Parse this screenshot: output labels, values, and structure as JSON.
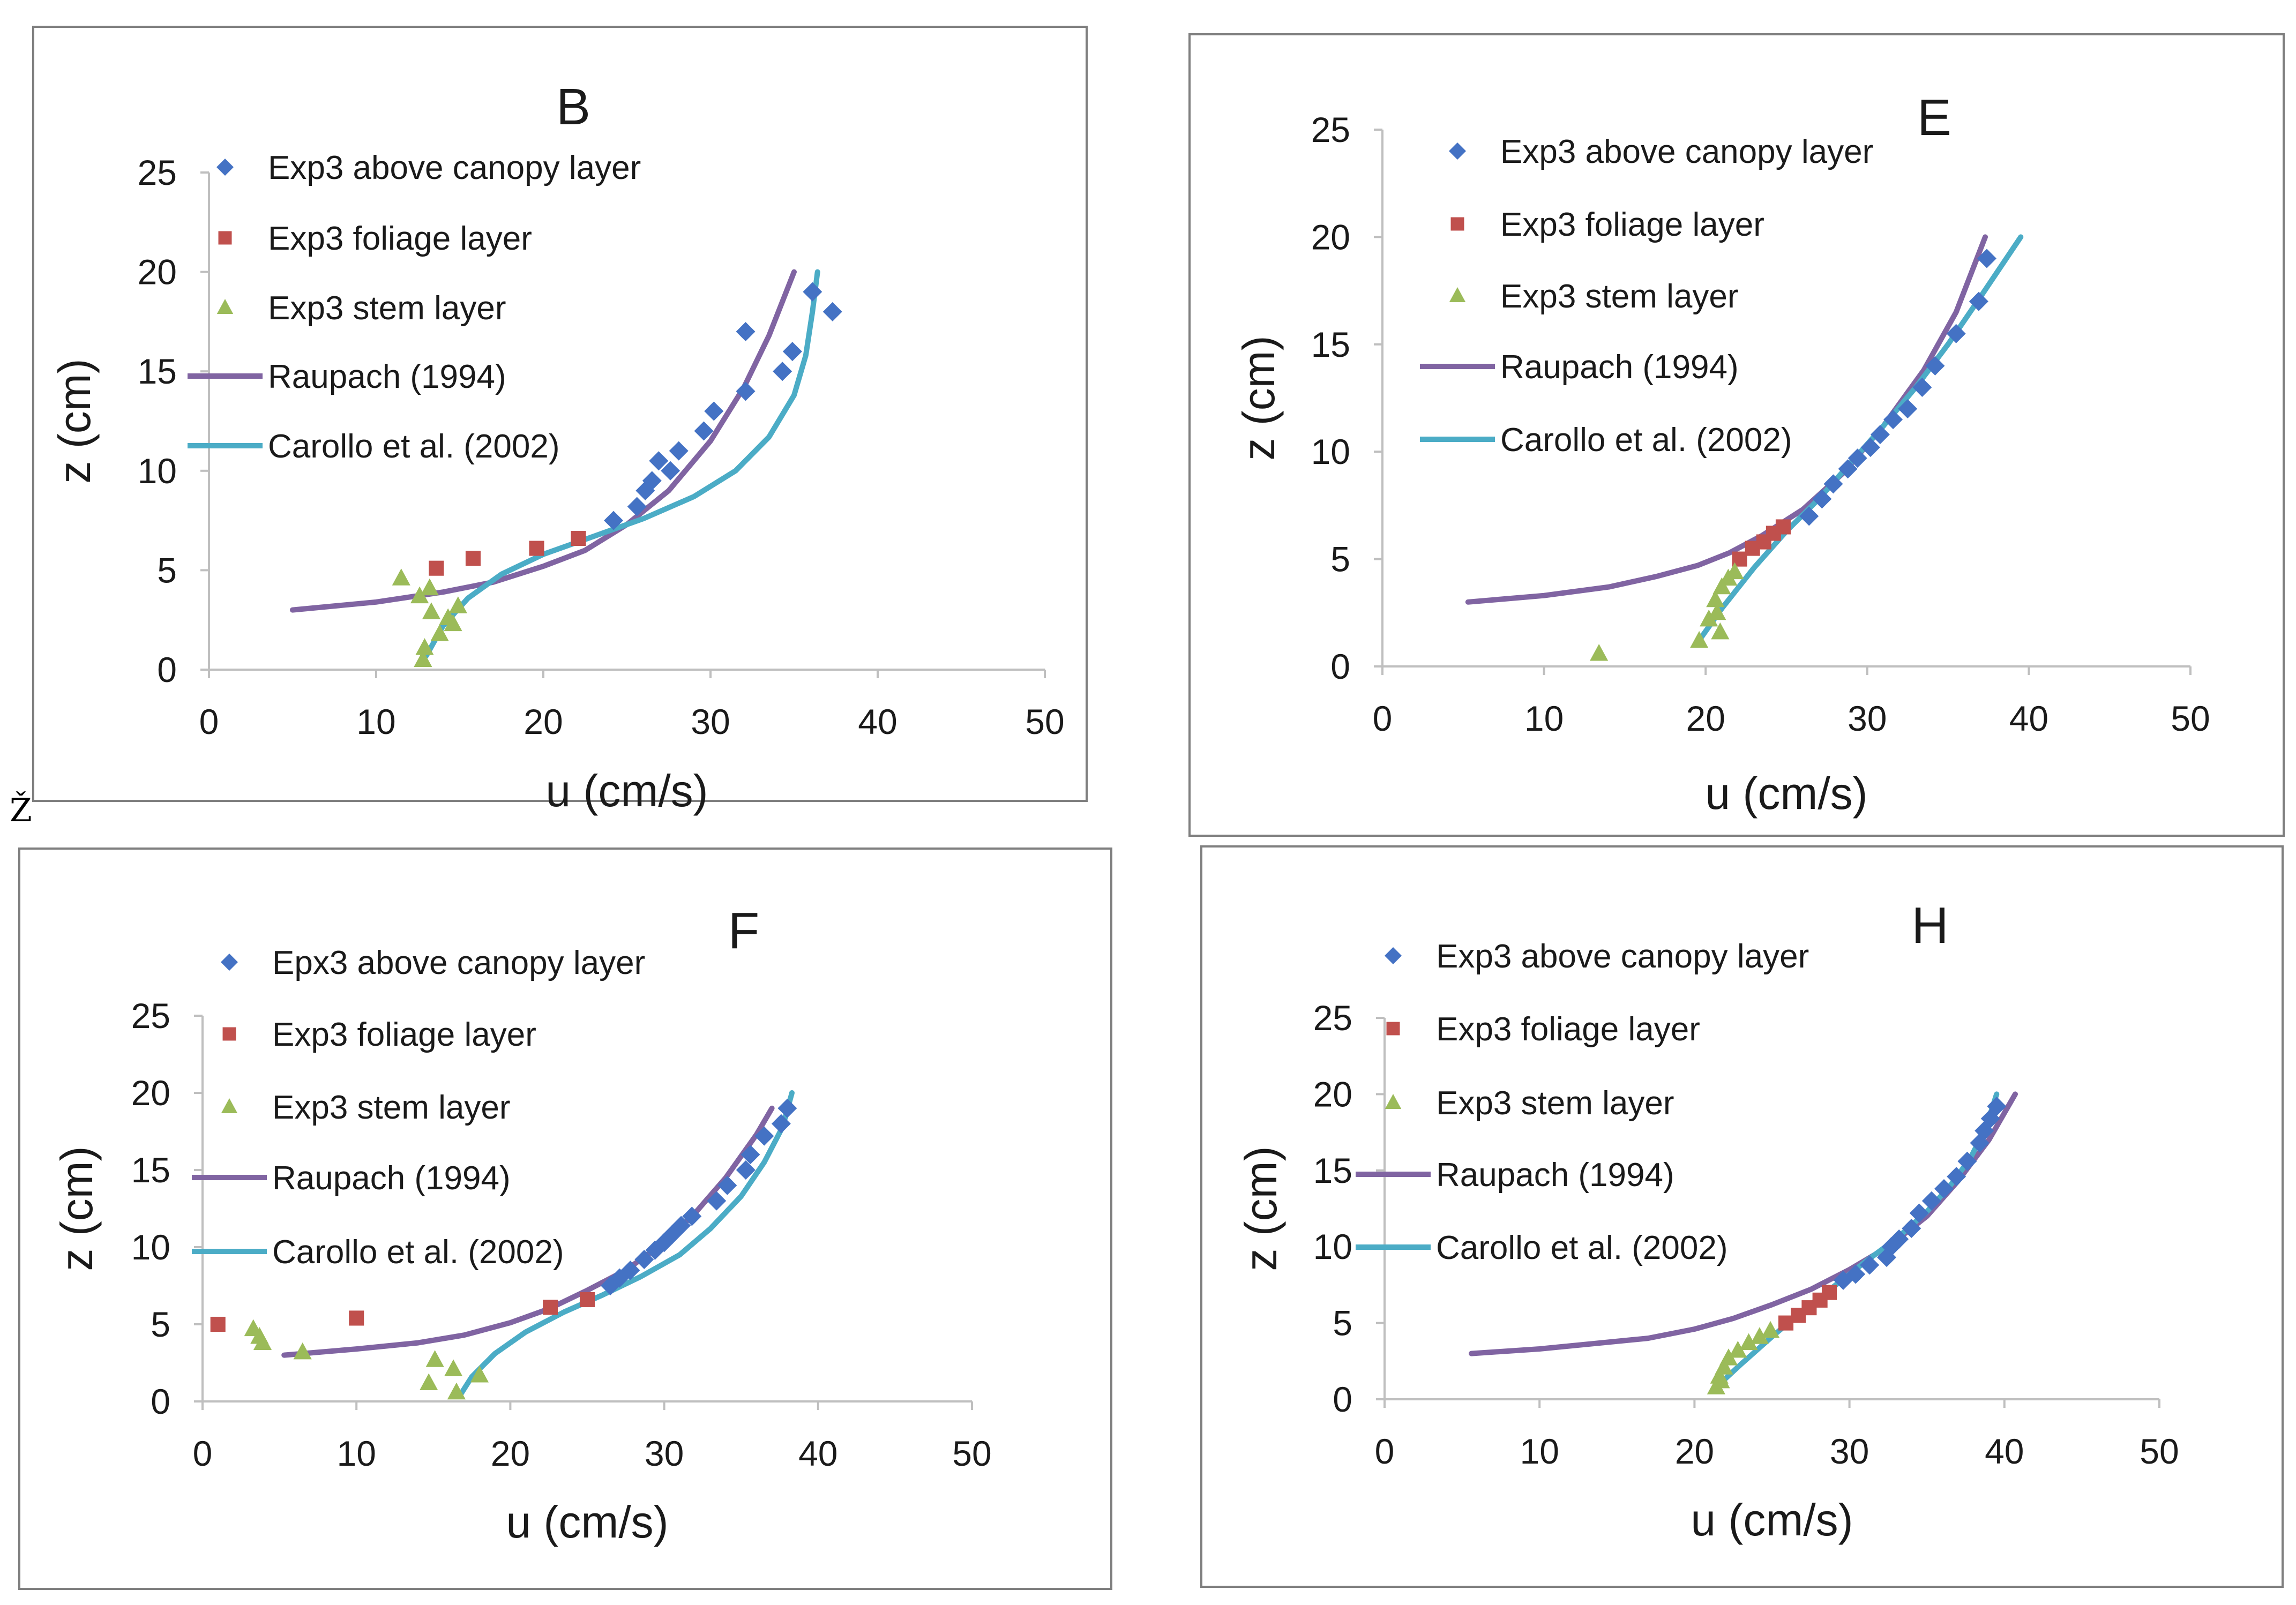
{
  "stray_glyph": "Ž",
  "colors": {
    "above": "#4472c4",
    "foliage": "#c0504d",
    "stem": "#9bbb59",
    "raupach": "#8064a2",
    "carollo": "#4bacc6",
    "axis": "#bfbfbf",
    "frame": "#7f7f7f"
  },
  "chart_data": [
    {
      "type": "scatter",
      "title": "B",
      "xlabel": "u (cm/s)",
      "ylabel": "z (cm)",
      "xlim": [
        0,
        50
      ],
      "ylim": [
        0,
        25
      ],
      "xticks": [
        "0",
        "10",
        "20",
        "30",
        "40",
        "50"
      ],
      "yticks": [
        "0",
        "5",
        "10",
        "15",
        "20",
        "25"
      ],
      "legend": [
        "Exp3 above canopy layer",
        "Exp3 foliage layer",
        "Exp3 stem layer",
        "Raupach (1994)",
        "Carollo et al. (2002)"
      ],
      "legend_position": "top-left",
      "series": [
        {
          "name": "Exp3 above canopy layer",
          "kind": "diamond",
          "x": [
            37.3,
            36.1,
            34.9,
            34.3,
            32.1,
            32.1,
            30.2,
            29.6,
            28.1,
            27.6,
            26.9,
            26.5,
            26.1,
            25.6,
            24.2
          ],
          "y": [
            18,
            19,
            16,
            15,
            17,
            14,
            13,
            12,
            11,
            10,
            10.5,
            9.5,
            9,
            8.2,
            7.5
          ]
        },
        {
          "name": "Exp3 foliage layer",
          "kind": "square",
          "x": [
            13.6,
            15.8,
            19.6,
            22.1
          ],
          "y": [
            5.1,
            5.6,
            6.1,
            6.6
          ]
        },
        {
          "name": "Exp3 stem layer",
          "kind": "triangle",
          "x": [
            11.5,
            12.6,
            13.2,
            13.3,
            13.8,
            14.3,
            14.6,
            14.9,
            12.9,
            12.8
          ],
          "y": [
            4.6,
            3.7,
            4.1,
            2.9,
            1.8,
            2.6,
            2.3,
            3.2,
            1.1,
            0.5
          ]
        },
        {
          "name": "Raupach (1994)",
          "kind": "line",
          "x": [
            5,
            10,
            14,
            17,
            20,
            22.5,
            25,
            27.5,
            30,
            32,
            33.5,
            35
          ],
          "y": [
            3,
            3.4,
            3.9,
            4.4,
            5.2,
            6,
            7.3,
            9,
            11.5,
            14.2,
            16.8,
            20
          ]
        },
        {
          "name": "Carollo et al. (2002)",
          "kind": "line",
          "x": [
            13,
            14,
            15.5,
            17.5,
            20,
            23,
            26,
            29,
            31.5,
            33.5,
            35,
            35.7,
            36.1,
            36.4
          ],
          "y": [
            0.7,
            2.2,
            3.6,
            4.8,
            5.8,
            6.7,
            7.6,
            8.7,
            10,
            11.7,
            13.8,
            15.8,
            18,
            20
          ]
        }
      ]
    },
    {
      "type": "scatter",
      "title": "E",
      "xlabel": "u (cm/s)",
      "ylabel": "z (cm)",
      "xlim": [
        0,
        50
      ],
      "ylim": [
        0,
        25
      ],
      "xticks": [
        "0",
        "10",
        "20",
        "30",
        "40",
        "50"
      ],
      "yticks": [
        "0",
        "5",
        "10",
        "15",
        "20",
        "25"
      ],
      "legend": [
        "Exp3 above canopy layer",
        "Exp3 foliage layer",
        "Exp3 stem layer",
        "Raupach (1994)",
        "Carollo et al. (2002)"
      ],
      "legend_position": "top-left",
      "series": [
        {
          "name": "Exp3 above canopy layer",
          "kind": "diamond",
          "x": [
            37.4,
            36.9,
            35.5,
            34.2,
            33.4,
            32.5,
            31.6,
            30.8,
            30.2,
            29.4,
            28.8,
            27.9,
            27.2,
            26.4
          ],
          "y": [
            19,
            17,
            15.5,
            14,
            13,
            12,
            11.5,
            10.8,
            10.2,
            9.7,
            9.2,
            8.5,
            7.8,
            7
          ]
        },
        {
          "name": "Exp3 foliage layer",
          "kind": "square",
          "x": [
            22.1,
            22.9,
            23.6,
            24.2,
            24.8
          ],
          "y": [
            5,
            5.5,
            5.8,
            6.2,
            6.5
          ]
        },
        {
          "name": "Exp3 stem layer",
          "kind": "triangle",
          "x": [
            13.4,
            19.6,
            20.2,
            20.6,
            20.7,
            21,
            21.4,
            21.8,
            20.9
          ],
          "y": [
            0.6,
            1.2,
            2.2,
            3.1,
            2.5,
            3.7,
            4.1,
            4.4,
            1.6
          ]
        },
        {
          "name": "Raupach (1994)",
          "kind": "line",
          "x": [
            5.3,
            10,
            14,
            17,
            19.5,
            21.5,
            23.5,
            26,
            28.5,
            31,
            33.5,
            35.5,
            37.3
          ],
          "y": [
            3,
            3.3,
            3.7,
            4.2,
            4.7,
            5.3,
            6.1,
            7.3,
            9,
            11.2,
            13.8,
            16.5,
            20
          ]
        },
        {
          "name": "Carollo et al. (2002)",
          "kind": "line",
          "x": [
            19.4,
            21,
            23,
            25,
            27,
            29,
            31,
            33,
            35,
            37,
            39.5
          ],
          "y": [
            1,
            2.7,
            4.6,
            6.3,
            7.8,
            9.5,
            11.2,
            13,
            15,
            17.2,
            20
          ]
        }
      ]
    },
    {
      "type": "scatter",
      "title": "F",
      "xlabel": "u (cm/s)",
      "ylabel": "z (cm)",
      "xlim": [
        0,
        50
      ],
      "ylim": [
        0,
        25
      ],
      "xticks": [
        "0",
        "10",
        "20",
        "30",
        "40",
        "50"
      ],
      "yticks": [
        "0",
        "5",
        "10",
        "15",
        "20",
        "25"
      ],
      "legend": [
        "Epx3 above canopy layer",
        "Exp3 foliage layer",
        "Exp3 stem layer",
        "Raupach (1994)",
        "Carollo et al. (2002)"
      ],
      "legend_position": "top-left",
      "series": [
        {
          "name": "Epx3 above canopy layer",
          "kind": "diamond",
          "x": [
            38,
            37.6,
            36.5,
            35.6,
            35.3,
            34.1,
            33.4,
            31.8,
            31.1,
            30.5,
            30,
            29.4,
            28.7,
            27.8,
            27.1,
            26.5
          ],
          "y": [
            19,
            18,
            17.2,
            16,
            15,
            14,
            13,
            12,
            11.4,
            10.8,
            10.3,
            9.8,
            9.2,
            8.5,
            8,
            7.5
          ]
        },
        {
          "name": "Exp3 foliage layer",
          "kind": "square",
          "x": [
            1,
            10,
            22.6,
            25
          ],
          "y": [
            5,
            5.4,
            6.1,
            6.6
          ]
        },
        {
          "name": "Exp3 stem layer",
          "kind": "triangle",
          "x": [
            3.3,
            3.7,
            3.9,
            6.5,
            14.7,
            15.1,
            16.3,
            16.5,
            18
          ],
          "y": [
            4.7,
            4.2,
            3.8,
            3.2,
            1.2,
            2.7,
            2.1,
            0.6,
            1.7
          ]
        },
        {
          "name": "Raupach (1994)",
          "kind": "line",
          "x": [
            5.3,
            10,
            14,
            17,
            20,
            22.5,
            25,
            27.5,
            30,
            32,
            34,
            36,
            37
          ],
          "y": [
            3,
            3.4,
            3.8,
            4.3,
            5.1,
            6,
            7.2,
            8.5,
            10.3,
            12.2,
            14.5,
            17.3,
            19
          ]
        },
        {
          "name": "Carollo et al. (2002)",
          "kind": "line",
          "x": [
            16.8,
            17.5,
            19,
            21,
            23.5,
            26,
            28.5,
            31,
            33,
            35,
            36.5,
            37.7,
            38.3
          ],
          "y": [
            0.5,
            1.6,
            3.1,
            4.5,
            5.8,
            6.9,
            8.1,
            9.5,
            11.2,
            13.3,
            15.5,
            17.8,
            20
          ]
        }
      ]
    },
    {
      "type": "scatter",
      "title": "H",
      "xlabel": "u (cm/s)",
      "ylabel": "z (cm)",
      "xlim": [
        0,
        50
      ],
      "ylim": [
        0,
        25
      ],
      "xticks": [
        "0",
        "10",
        "20",
        "30",
        "40",
        "50"
      ],
      "yticks": [
        "0",
        "5",
        "10",
        "15",
        "20",
        "25"
      ],
      "legend": [
        "Exp3 above canopy layer",
        "Exp3 foliage layer",
        "Exp3 stem layer",
        "Raupach (1994)",
        "Carollo et al. (2002)"
      ],
      "legend_position": "top-left",
      "series": [
        {
          "name": "Exp3 above canopy layer",
          "kind": "diamond",
          "x": [
            39.5,
            39.1,
            38.7,
            38.4,
            37.6,
            36.9,
            36.1,
            35.3,
            34.5,
            34,
            33.2,
            32.7,
            32.4,
            31.3,
            30.4,
            29.6
          ],
          "y": [
            19.2,
            18.4,
            17.6,
            16.8,
            15.6,
            14.6,
            13.8,
            13,
            12.2,
            11.2,
            10.5,
            10,
            9.3,
            8.8,
            8.2,
            7.8
          ]
        },
        {
          "name": "Exp3 foliage layer",
          "kind": "square",
          "x": [
            25.9,
            26.7,
            27.4,
            28.1,
            28.7
          ],
          "y": [
            5,
            5.5,
            6,
            6.5,
            7
          ]
        },
        {
          "name": "Exp3 stem layer",
          "kind": "triangle",
          "x": [
            21.4,
            21.6,
            21.9,
            22.2,
            22.8,
            23.5,
            24.2,
            24.9,
            21.7
          ],
          "y": [
            0.8,
            1.5,
            2.1,
            2.7,
            3.2,
            3.7,
            4.1,
            4.5,
            1.2
          ]
        },
        {
          "name": "Raupach (1994)",
          "kind": "line",
          "x": [
            5.6,
            10,
            14,
            17,
            20,
            22.5,
            25,
            27.5,
            30,
            32.5,
            35,
            37,
            39,
            40.7
          ],
          "y": [
            3,
            3.3,
            3.7,
            4,
            4.6,
            5.3,
            6.2,
            7.2,
            8.5,
            10,
            12,
            14.3,
            17,
            20
          ]
        },
        {
          "name": "Carollo et al. (2002)",
          "kind": "line",
          "x": [
            21.3,
            23,
            25,
            27,
            29,
            31,
            33,
            35,
            36.5,
            37.8,
            38.8,
            39.5
          ],
          "y": [
            0.7,
            2.3,
            4.1,
            5.8,
            7.4,
            9,
            10.5,
            12.3,
            14,
            15.8,
            17.8,
            20
          ]
        }
      ]
    }
  ]
}
